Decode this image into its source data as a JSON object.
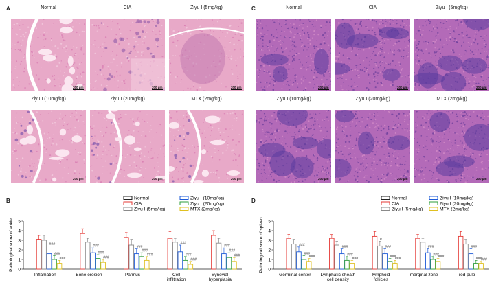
{
  "panels": {
    "A": {
      "letter": "A",
      "images": [
        {
          "label": "Normal",
          "scale": "200 μm",
          "style": "bone-normal"
        },
        {
          "label": "CIA",
          "scale": "200 μm",
          "style": "cia"
        },
        {
          "label": "Ziyu I (5mg/kg)",
          "scale": "200 μm",
          "style": "mid"
        },
        {
          "label": "Ziyu I (10mg/kg)",
          "scale": "200 μm",
          "style": "bone-mid"
        },
        {
          "label": "Ziyu I (20mg/kg)",
          "scale": "200 μm",
          "style": "bone-good"
        },
        {
          "label": "MTX (2mg/kg)",
          "scale": "200 μm",
          "style": "bone-good"
        }
      ]
    },
    "C": {
      "letter": "C",
      "images": [
        {
          "label": "Normal",
          "scale": "200 μm",
          "style": "spleen-normal"
        },
        {
          "label": "CIA",
          "scale": "200 μm",
          "style": "spleen-cia"
        },
        {
          "label": "Ziyu I (5mg/kg)",
          "scale": "200 μm",
          "style": "spleen-cia"
        },
        {
          "label": "Ziyu I (10mg/kg)",
          "scale": "200 μm",
          "style": "spleen-mid"
        },
        {
          "label": "Ziyu I (20mg/kg)",
          "scale": "200 μm",
          "style": "spleen-good"
        },
        {
          "label": "MTX (2mg/kg)",
          "scale": "200 μm",
          "style": "spleen-good"
        }
      ]
    }
  },
  "chart_data": [
    {
      "panel": "B",
      "type": "bar",
      "ylabel": "Pathological score of ankle",
      "ylim": [
        0,
        5
      ],
      "yticks": [
        0,
        1,
        2,
        3,
        4,
        5
      ],
      "categories": [
        "Inflamation",
        "Bone erosion",
        "Pannus",
        "Cell infiltration",
        "Synovial hyperplasia"
      ],
      "series": [
        {
          "name": "Normal",
          "color": "#222222",
          "values": [
            0,
            0,
            0,
            0,
            0
          ],
          "errors": [
            0,
            0,
            0,
            0,
            0
          ],
          "marks": [
            "",
            "",
            "",
            "",
            ""
          ]
        },
        {
          "name": "CIA",
          "color": "#e53935",
          "values": [
            3.1,
            3.7,
            3.3,
            3.2,
            3.5
          ],
          "errors": [
            0.4,
            0.5,
            0.5,
            0.7,
            0.5
          ],
          "marks": [
            "",
            "",
            "",
            "",
            ""
          ]
        },
        {
          "name": "Ziyu I (5mg/kg)",
          "color": "#8a8a8a",
          "values": [
            3.0,
            2.8,
            2.5,
            2.8,
            2.7
          ],
          "errors": [
            0.5,
            0.4,
            0.6,
            0.4,
            0.5
          ],
          "marks": [
            "",
            "",
            "",
            "",
            ""
          ]
        },
        {
          "name": "Ziyu I (10mg/kg)",
          "color": "#1e5bd8",
          "values": [
            1.6,
            1.7,
            1.6,
            1.8,
            1.6
          ],
          "errors": [
            0.8,
            0.5,
            0.5,
            0.7,
            0.6
          ],
          "marks": [
            "###",
            "###",
            "###",
            "###",
            "###"
          ]
        },
        {
          "name": "Ziyu I (20mg/kg)",
          "color": "#2e9e3a",
          "values": [
            1.0,
            1.1,
            1.3,
            0.9,
            1.2
          ],
          "errors": [
            0.4,
            0.4,
            0.4,
            0.4,
            0.5
          ],
          "marks": [
            "###",
            "###",
            "###",
            "###",
            "###"
          ]
        },
        {
          "name": "MTX (2mg/kg)",
          "color": "#e0c020",
          "values": [
            0.6,
            0.7,
            0.9,
            0.5,
            0.8
          ],
          "errors": [
            0.3,
            0.3,
            0.4,
            0.3,
            0.4
          ],
          "marks": [
            "###",
            "###",
            "###",
            "###",
            "###"
          ]
        }
      ]
    },
    {
      "panel": "D",
      "type": "bar",
      "ylabel": "Pathological score of spleen",
      "ylim": [
        0,
        5
      ],
      "yticks": [
        0,
        1,
        2,
        3,
        4,
        5
      ],
      "categories": [
        "Germinal center",
        "Lymphatic sheath cell density",
        "lymphoid follicles",
        "marginal zone",
        "red pulp"
      ],
      "series": [
        {
          "name": "Normal",
          "color": "#222222",
          "values": [
            0,
            0,
            0,
            0,
            0
          ],
          "errors": [
            0,
            0,
            0,
            0,
            0
          ],
          "marks": [
            "",
            "",
            "",
            "",
            ""
          ]
        },
        {
          "name": "CIA",
          "color": "#e53935",
          "values": [
            3.2,
            3.2,
            3.4,
            3.2,
            3.4
          ],
          "errors": [
            0.4,
            0.4,
            0.5,
            0.4,
            0.5
          ],
          "marks": [
            "",
            "",
            "",
            "",
            ""
          ]
        },
        {
          "name": "Ziyu I (5mg/kg)",
          "color": "#8a8a8a",
          "values": [
            2.6,
            2.5,
            2.4,
            2.8,
            2.6
          ],
          "errors": [
            0.5,
            0.4,
            0.5,
            0.4,
            0.5
          ],
          "marks": [
            "",
            "",
            "#",
            "",
            ""
          ]
        },
        {
          "name": "Ziyu I (10mg/kg)",
          "color": "#1e5bd8",
          "values": [
            1.8,
            1.6,
            1.6,
            1.7,
            1.6
          ],
          "errors": [
            0.5,
            0.5,
            0.5,
            0.4,
            0.5
          ],
          "marks": [
            "###",
            "###",
            "###",
            "###",
            "###"
          ]
        },
        {
          "name": "Ziyu I (20mg/kg)",
          "color": "#2e9e3a",
          "values": [
            1.0,
            0.9,
            0.8,
            1.0,
            0.6
          ],
          "errors": [
            0.4,
            0.4,
            0.3,
            0.3,
            0.3
          ],
          "marks": [
            "###",
            "###",
            "###",
            "###",
            "###"
          ]
        },
        {
          "name": "MTX (2mg/kg)",
          "color": "#e0c020",
          "values": [
            0.8,
            0.6,
            0.6,
            0.8,
            0.6
          ],
          "errors": [
            0.3,
            0.3,
            0.3,
            0.3,
            0.2
          ],
          "marks": [
            "###",
            "###",
            "###",
            "###",
            "###"
          ]
        }
      ]
    }
  ]
}
